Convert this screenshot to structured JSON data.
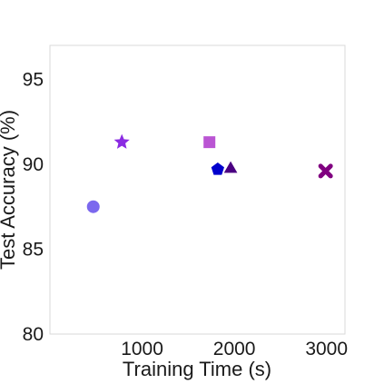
{
  "chart_data": {
    "type": "scatter",
    "title": "",
    "xlabel": "Training Time (s)",
    "ylabel": "Test Accuracy (%)",
    "xlim": [
      0,
      3200
    ],
    "ylim": [
      80,
      97
    ],
    "xticks": [
      1000,
      2000,
      3000
    ],
    "yticks": [
      80,
      85,
      90,
      95
    ],
    "grid": false,
    "legend": "none",
    "points": [
      {
        "x": 470,
        "y": 87.5,
        "marker": "circle",
        "color": "#7b68ee"
      },
      {
        "x": 780,
        "y": 91.3,
        "marker": "star",
        "color": "#8a2be2"
      },
      {
        "x": 1730,
        "y": 91.3,
        "marker": "square",
        "color": "#ba55d3"
      },
      {
        "x": 1820,
        "y": 89.7,
        "marker": "pentagon",
        "color": "#0000cd"
      },
      {
        "x": 1960,
        "y": 89.8,
        "marker": "triangle",
        "color": "#4b0082"
      },
      {
        "x": 2990,
        "y": 89.6,
        "marker": "x",
        "color": "#800080"
      }
    ]
  }
}
